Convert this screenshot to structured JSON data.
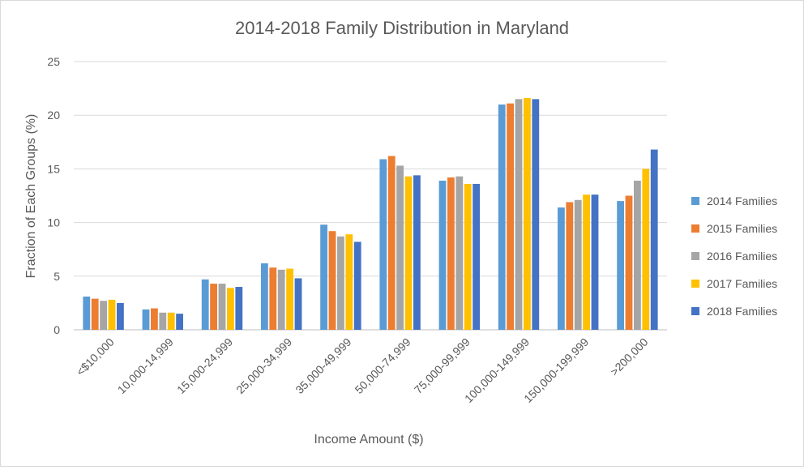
{
  "chart_data": {
    "type": "bar",
    "title": "2014-2018 Family Distribution in Maryland",
    "xlabel": "Income Amount ($)",
    "ylabel": "Fraction of Each Groups (%)",
    "ylim": [
      0,
      25
    ],
    "yticks": [
      "0",
      "5",
      "10",
      "15",
      "20",
      "25"
    ],
    "grid": true,
    "legend_position": "right",
    "categories": [
      "<$10,000",
      "10,000-14,999",
      "15,000-24,999",
      "25,000-34,999",
      "35,000-49,999",
      "50,000-74,999",
      "75,000-99,999",
      "100,000-149,999",
      "150,000-199,999",
      ">200,000"
    ],
    "series": [
      {
        "name": "2014 Families",
        "color": "#5B9BD5",
        "values": [
          3.1,
          1.9,
          4.7,
          6.2,
          9.8,
          15.9,
          13.9,
          21.0,
          11.4,
          12.0
        ]
      },
      {
        "name": "2015 Families",
        "color": "#ED7D31",
        "values": [
          2.9,
          2.0,
          4.3,
          5.8,
          9.2,
          16.2,
          14.2,
          21.1,
          11.9,
          12.5
        ]
      },
      {
        "name": "2016 Families",
        "color": "#A5A5A5",
        "values": [
          2.7,
          1.6,
          4.3,
          5.6,
          8.7,
          15.3,
          14.3,
          21.5,
          12.1,
          13.9
        ]
      },
      {
        "name": "2017 Families",
        "color": "#FFC000",
        "values": [
          2.8,
          1.6,
          3.9,
          5.7,
          8.9,
          14.3,
          13.6,
          21.6,
          12.6,
          15.0
        ]
      },
      {
        "name": "2018 Families",
        "color": "#4472C4",
        "values": [
          2.5,
          1.5,
          4.0,
          4.8,
          8.2,
          14.4,
          13.6,
          21.5,
          12.6,
          16.8
        ]
      }
    ]
  }
}
